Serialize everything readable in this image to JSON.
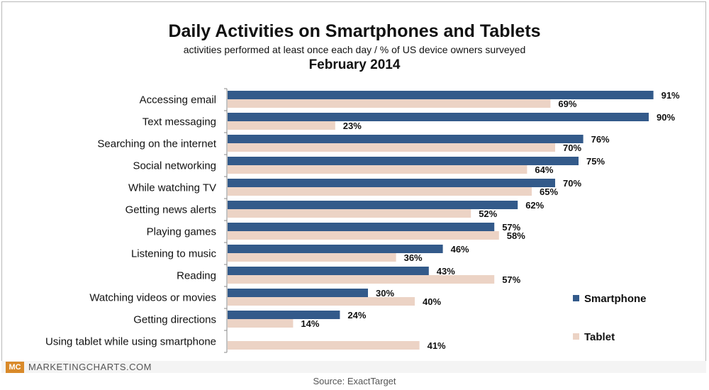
{
  "header": {
    "title": "Daily Activities on Smartphones and Tablets",
    "subtitle": "activities performed at least once each day / % of US device owners surveyed",
    "date": "February 2014"
  },
  "footer": {
    "logo": "MC",
    "brand": "MARKETINGCHARTS.COM",
    "source": "Source: ExactTarget"
  },
  "colors": {
    "smartphone": "#335a8a",
    "tablet": "#ecd3c5"
  },
  "chart_data": {
    "type": "bar",
    "orientation": "horizontal",
    "categories": [
      "Accessing email",
      "Text messaging",
      "Searching on the internet",
      "Social networking",
      "While watching TV",
      "Getting news alerts",
      "Playing games",
      "Listening to music",
      "Reading",
      "Watching videos or movies",
      "Getting directions",
      "Using tablet while using smartphone"
    ],
    "series": [
      {
        "name": "Smartphone",
        "values": [
          91,
          90,
          76,
          75,
          70,
          62,
          57,
          46,
          43,
          30,
          24,
          null
        ]
      },
      {
        "name": "Tablet",
        "values": [
          69,
          23,
          70,
          64,
          65,
          52,
          58,
          36,
          57,
          40,
          14,
          41
        ]
      }
    ],
    "value_suffix": "%",
    "xlim": [
      0,
      100
    ],
    "grid": false,
    "legend_position": "right"
  }
}
